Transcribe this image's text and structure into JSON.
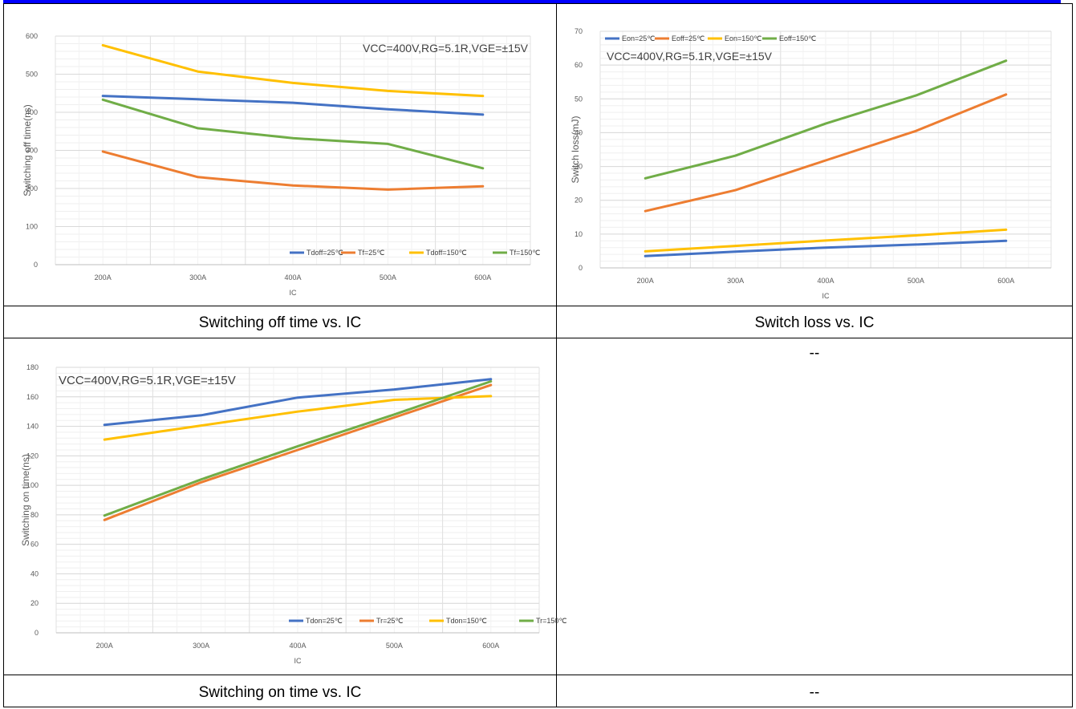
{
  "captions": {
    "off_time": "Switching off time vs. IC",
    "loss": "Switch loss vs. IC",
    "on_time": "Switching on time vs. IC",
    "empty_top": "--",
    "empty_bottom": "--"
  },
  "colors": {
    "blue": "#4472c4",
    "orange": "#ed7d31",
    "yellow": "#ffc000",
    "green": "#70ad47",
    "border_blue": "#0000ff"
  },
  "chart_data": [
    {
      "id": "off",
      "type": "line",
      "title": "",
      "annotation": "VCC=400V,RG=5.1R,VGE=±15V",
      "xlabel": "IC",
      "ylabel": "Switching off time(ns)",
      "categories": [
        "200A",
        "300A",
        "400A",
        "500A",
        "600A"
      ],
      "ylim": [
        0,
        600
      ],
      "yticks": [
        0,
        100,
        200,
        300,
        400,
        500,
        600
      ],
      "legend_position": "bottom-right",
      "grid": true,
      "series": [
        {
          "name": "Tdoff=25℃",
          "color": "#4472c4",
          "values": [
            443,
            434,
            425,
            408,
            394
          ]
        },
        {
          "name": "Tf=25℃",
          "color": "#ed7d31",
          "values": [
            297,
            230,
            208,
            197,
            206
          ]
        },
        {
          "name": "Tdoff=150℃",
          "color": "#ffc000",
          "values": [
            576,
            507,
            477,
            456,
            443
          ]
        },
        {
          "name": "Tf=150℃",
          "color": "#70ad47",
          "values": [
            433,
            358,
            332,
            317,
            253
          ]
        }
      ]
    },
    {
      "id": "loss",
      "type": "line",
      "title": "",
      "annotation": "VCC=400V,RG=5.1R,VGE=±15V",
      "xlabel": "IC",
      "ylabel": "Switch loss(mJ)",
      "categories": [
        "200A",
        "300A",
        "400A",
        "500A",
        "600A"
      ],
      "ylim": [
        0,
        70
      ],
      "yticks": [
        0,
        10,
        20,
        30,
        40,
        50,
        60,
        70
      ],
      "legend_position": "top-left",
      "grid": true,
      "series": [
        {
          "name": "Eon=25℃",
          "color": "#4472c4",
          "values": [
            3.5,
            4.8,
            6,
            6.9,
            8
          ]
        },
        {
          "name": "Eoff=25℃",
          "color": "#ed7d31",
          "values": [
            16.8,
            23,
            31.8,
            40.5,
            51.3
          ]
        },
        {
          "name": "Eon=150℃",
          "color": "#ffc000",
          "values": [
            4.9,
            6.5,
            8.1,
            9.6,
            11.3
          ]
        },
        {
          "name": "Eoff=150℃",
          "color": "#70ad47",
          "values": [
            26.5,
            33.2,
            42.7,
            51,
            61.3
          ]
        }
      ]
    },
    {
      "id": "on",
      "type": "line",
      "title": "",
      "annotation": "VCC=400V,RG=5.1R,VGE=±15V",
      "xlabel": "IC",
      "ylabel": "Switching on time(ns)",
      "categories": [
        "200A",
        "300A",
        "400A",
        "500A",
        "600A"
      ],
      "ylim": [
        0,
        180
      ],
      "yticks": [
        0,
        20,
        40,
        60,
        80,
        100,
        120,
        140,
        160,
        180
      ],
      "legend_position": "bottom-right",
      "grid": true,
      "series": [
        {
          "name": "Tdon=25℃",
          "color": "#4472c4",
          "values": [
            141,
            147.5,
            159.5,
            165,
            172
          ]
        },
        {
          "name": "Tr=25℃",
          "color": "#ed7d31",
          "values": [
            76.5,
            102,
            124,
            146,
            168
          ]
        },
        {
          "name": "Tdon=150℃",
          "color": "#ffc000",
          "values": [
            131,
            140.5,
            150,
            158,
            160.5
          ]
        },
        {
          "name": "Tr=150℃",
          "color": "#70ad47",
          "values": [
            79.5,
            104,
            126.5,
            148,
            170.5
          ]
        }
      ]
    }
  ]
}
